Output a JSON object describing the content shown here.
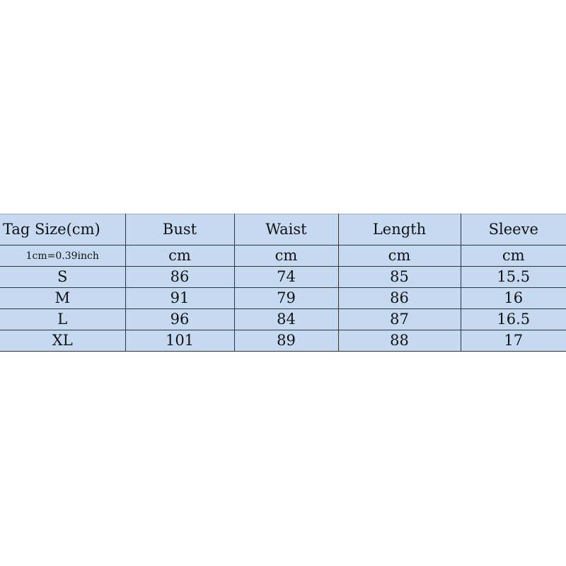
{
  "table": {
    "headers": [
      "Tag Size(cm)",
      "Bust",
      "Waist",
      "Length",
      "Sleeve"
    ],
    "units": [
      "1cm=0.39inch",
      "cm",
      "cm",
      "cm",
      "cm"
    ],
    "rows": [
      [
        "S",
        "86",
        "74",
        "85",
        "15.5"
      ],
      [
        "M",
        "91",
        "79",
        "86",
        "16"
      ],
      [
        "L",
        "96",
        "84",
        "87",
        "16.5"
      ],
      [
        "XL",
        "101",
        "89",
        "88",
        "17"
      ]
    ]
  }
}
